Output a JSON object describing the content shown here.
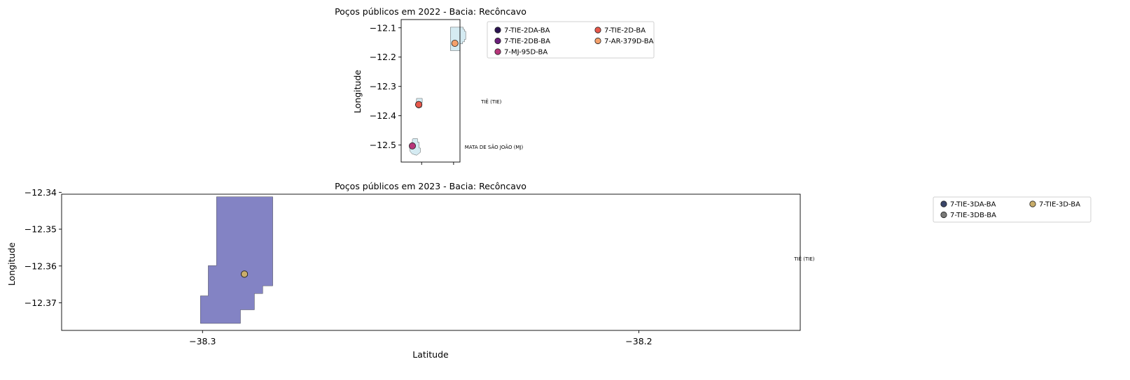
{
  "chart_data": [
    {
      "type": "scatter",
      "title": "Poços públicos em 2022 - Bacia: Recôncavo",
      "xlabel": "",
      "ylabel": "Longitude",
      "xlim": [
        -38.364,
        -38.18
      ],
      "ylim": [
        -12.558,
        -12.072
      ],
      "x_ticks": [
        -38.3,
        -38.2
      ],
      "y_ticks": [
        -12.1,
        -12.2,
        -12.3,
        -12.4,
        -12.5
      ],
      "y_tick_labels": [
        "−12.1",
        "−12.2",
        "−12.3",
        "−12.4",
        "−12.5"
      ],
      "x_tick_labels": [
        "",
        ""
      ],
      "legend_placement": "outside-right-top",
      "legend_columns": 2,
      "series": [
        {
          "name": "7-TIE-2DA-BA",
          "color": "#2c1452",
          "x": [
            -38.309
          ],
          "y": [
            -12.362
          ]
        },
        {
          "name": "7-TIE-2DB-BA",
          "color": "#6b1f7a",
          "x": [
            -38.309
          ],
          "y": [
            -12.362
          ]
        },
        {
          "name": "7-MJ-95D-BA",
          "color": "#b7367a",
          "x": [
            -38.329
          ],
          "y": [
            -12.503
          ]
        },
        {
          "name": "7-TIE-2D-BA",
          "color": "#e8584b",
          "x": [
            -38.309
          ],
          "y": [
            -12.362
          ]
        },
        {
          "name": "7-AR-379D-BA",
          "color": "#f4a06b",
          "x": [
            -38.196
          ],
          "y": [
            -12.153
          ]
        }
      ],
      "polygons": [
        {
          "fill": "#d5ebf2",
          "points": [
            [
              -38.21,
              -12.098
            ],
            [
              -38.17,
              -12.098
            ],
            [
              -38.17,
              -12.105
            ],
            [
              -38.166,
              -12.105
            ],
            [
              -38.166,
              -12.112
            ],
            [
              -38.162,
              -12.112
            ],
            [
              -38.162,
              -12.14
            ],
            [
              -38.166,
              -12.14
            ],
            [
              -38.166,
              -12.148
            ],
            [
              -38.172,
              -12.148
            ],
            [
              -38.172,
              -12.155
            ],
            [
              -38.18,
              -12.155
            ],
            [
              -38.18,
              -12.178
            ],
            [
              -38.21,
              -12.178
            ]
          ]
        },
        {
          "fill": "#d5ebf2",
          "points": [
            [
              -38.316,
              -12.341
            ],
            [
              -38.298,
              -12.341
            ],
            [
              -38.298,
              -12.355
            ],
            [
              -38.303,
              -12.355
            ],
            [
              -38.303,
              -12.362
            ],
            [
              -38.3,
              -12.362
            ],
            [
              -38.3,
              -12.371
            ],
            [
              -38.313,
              -12.371
            ],
            [
              -38.313,
              -12.36
            ],
            [
              -38.316,
              -12.36
            ]
          ]
        },
        {
          "fill": "#d5ebf2",
          "points": [
            [
              -38.327,
              -12.478
            ],
            [
              -38.313,
              -12.478
            ],
            [
              -38.313,
              -12.49
            ],
            [
              -38.308,
              -12.49
            ],
            [
              -38.308,
              -12.51
            ],
            [
              -38.304,
              -12.51
            ],
            [
              -38.304,
              -12.525
            ],
            [
              -38.31,
              -12.53
            ],
            [
              -38.316,
              -12.535
            ],
            [
              -38.324,
              -12.532
            ],
            [
              -38.33,
              -12.53
            ],
            [
              -38.336,
              -12.522
            ],
            [
              -38.338,
              -12.508
            ],
            [
              -38.334,
              -12.495
            ],
            [
              -38.329,
              -12.49
            ],
            [
              -38.329,
              -12.48
            ]
          ]
        }
      ],
      "annotations": [
        {
          "text": "TIÊ (TIE)",
          "x": -38.114,
          "y": -12.358
        },
        {
          "text": "MATA DE SÃO JOÃO (MJ)",
          "x": -38.165,
          "y": -12.513
        }
      ]
    },
    {
      "type": "scatter",
      "title": "Poços públicos em 2023 - Bacia: Recôncavo",
      "xlabel": "Latitude",
      "ylabel": "Longitude",
      "xlim": [
        -38.3323,
        -38.163
      ],
      "ylim": [
        -12.3775,
        -12.3405
      ],
      "x_ticks": [
        -38.3,
        -38.2
      ],
      "x_tick_labels": [
        "−38.3",
        "−38.2"
      ],
      "y_ticks": [
        -12.34,
        -12.35,
        -12.36,
        -12.37
      ],
      "y_tick_labels": [
        "−12.34",
        "−12.35",
        "−12.36",
        "−12.37"
      ],
      "legend_placement": "outside-right-top",
      "legend_columns": 2,
      "series": [
        {
          "name": "7-TIE-3DA-BA",
          "color": "#3a4569",
          "x": [
            -38.2904
          ],
          "y": [
            -12.3622
          ]
        },
        {
          "name": "7-TIE-3DB-BA",
          "color": "#7a7a78",
          "x": [
            -38.2904
          ],
          "y": [
            -12.3622
          ]
        },
        {
          "name": "7-TIE-3D-BA",
          "color": "#c9ad6a",
          "x": [
            -38.2904
          ],
          "y": [
            -12.3622
          ]
        }
      ],
      "polygons": [
        {
          "fill": "#8383c4",
          "points": [
            [
              -38.2968,
              -12.3412
            ],
            [
              -38.2839,
              -12.3412
            ],
            [
              -38.2839,
              -12.3654
            ],
            [
              -38.2862,
              -12.3654
            ],
            [
              -38.2862,
              -12.3675
            ],
            [
              -38.2881,
              -12.3675
            ],
            [
              -38.2881,
              -12.3719
            ],
            [
              -38.2913,
              -12.3719
            ],
            [
              -38.2913,
              -12.3756
            ],
            [
              -38.3005,
              -12.3756
            ],
            [
              -38.3005,
              -12.3681
            ],
            [
              -38.2987,
              -12.3681
            ],
            [
              -38.2987,
              -12.3599
            ],
            [
              -38.2968,
              -12.3599
            ]
          ]
        }
      ],
      "annotations": [
        {
          "text": "TIÊ (TIE)",
          "x": -38.1644,
          "y": -12.3585
        }
      ]
    }
  ]
}
